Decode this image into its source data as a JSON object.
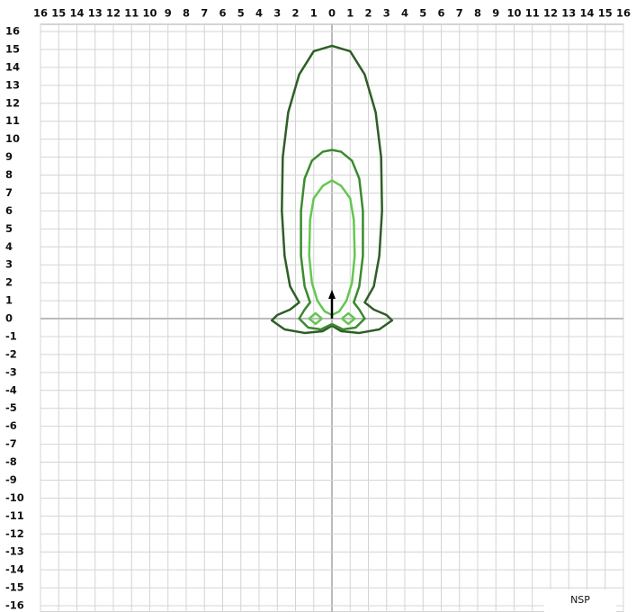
{
  "chart_data": {
    "type": "contour",
    "xlim": [
      -16,
      16
    ],
    "ylim": [
      -16,
      16
    ],
    "xticks": [
      {
        "value": -16,
        "label": "16"
      },
      {
        "value": -15,
        "label": "15"
      },
      {
        "value": -14,
        "label": "14"
      },
      {
        "value": -13,
        "label": "13"
      },
      {
        "value": -12,
        "label": "12"
      },
      {
        "value": -11,
        "label": "11"
      },
      {
        "value": -10,
        "label": "10"
      },
      {
        "value": -9,
        "label": "9"
      },
      {
        "value": -8,
        "label": "8"
      },
      {
        "value": -7,
        "label": "7"
      },
      {
        "value": -6,
        "label": "6"
      },
      {
        "value": -5,
        "label": "5"
      },
      {
        "value": -4,
        "label": "4"
      },
      {
        "value": -3,
        "label": "3"
      },
      {
        "value": -2,
        "label": "2"
      },
      {
        "value": -1,
        "label": "1"
      },
      0,
      1,
      2,
      3,
      4,
      5,
      6,
      7,
      8,
      9,
      10,
      11,
      12,
      13,
      14,
      15,
      16
    ],
    "yticks": [
      16,
      15,
      14,
      13,
      12,
      11,
      10,
      9,
      8,
      7,
      6,
      5,
      4,
      3,
      2,
      1,
      0,
      -1,
      -2,
      -3,
      -4,
      -5,
      -6,
      -7,
      -8,
      -9,
      -10,
      -11,
      -12,
      -13,
      -14,
      -15,
      -16
    ],
    "grid": true,
    "annotation": "NSP",
    "series": [
      {
        "color": "#2e5e26",
        "x": [
          0,
          0.5,
          1.5,
          2.6,
          3.3,
          3.0,
          2.3,
          1.8,
          2.3,
          2.6,
          2.75,
          2.7,
          2.4,
          1.8,
          1,
          0,
          -1,
          -1.8,
          -2.4,
          -2.7,
          -2.75,
          -2.6,
          -2.3,
          -1.8,
          -2.3,
          -3.0,
          -3.3,
          -2.6,
          -1.5,
          -0.5,
          0
        ],
        "y": [
          -0.4,
          -0.7,
          -0.8,
          -0.6,
          -0.1,
          0.2,
          0.5,
          0.9,
          1.8,
          3.5,
          6,
          9,
          11.5,
          13.6,
          14.9,
          15.2,
          14.9,
          13.6,
          11.5,
          9,
          6,
          3.5,
          1.8,
          0.9,
          0.5,
          0.2,
          -0.1,
          -0.6,
          -0.8,
          -0.7,
          -0.4
        ]
      },
      {
        "color": "#3a8a2e",
        "x": [
          0,
          0.6,
          1.3,
          1.8,
          1.5,
          1.2,
          1.5,
          1.7,
          1.7,
          1.5,
          1.1,
          0.5,
          0,
          -0.5,
          -1.1,
          -1.5,
          -1.7,
          -1.7,
          -1.5,
          -1.2,
          -1.5,
          -1.8,
          -1.3,
          -0.6,
          0
        ],
        "y": [
          -0.3,
          -0.6,
          -0.5,
          0,
          0.5,
          0.9,
          1.8,
          3.5,
          6,
          7.8,
          8.8,
          9.3,
          9.4,
          9.3,
          8.8,
          7.8,
          6,
          3.5,
          1.8,
          0.9,
          0.5,
          0,
          -0.5,
          -0.6,
          -0.3
        ]
      },
      {
        "color": "#63c74f",
        "x": [
          0,
          0.4,
          0.8,
          1.1,
          1.25,
          1.2,
          1.0,
          0.5,
          0,
          -0.5,
          -1.0,
          -1.2,
          -1.25,
          -1.1,
          -0.8,
          -0.4,
          0
        ],
        "y": [
          0.2,
          0.4,
          1.0,
          2,
          3.5,
          5.5,
          6.7,
          7.4,
          7.7,
          7.4,
          6.7,
          5.5,
          3.5,
          2,
          1.0,
          0.4,
          0.2
        ]
      },
      {
        "color": "#63c74f",
        "x": [
          0.55,
          0.9,
          1.25,
          0.9,
          0.55
        ],
        "y": [
          0,
          0.3,
          0,
          -0.3,
          0
        ]
      },
      {
        "color": "#63c74f",
        "x": [
          -0.55,
          -0.9,
          -1.25,
          -0.9,
          -0.55
        ],
        "y": [
          0,
          0.3,
          0,
          -0.3,
          0
        ]
      }
    ]
  }
}
